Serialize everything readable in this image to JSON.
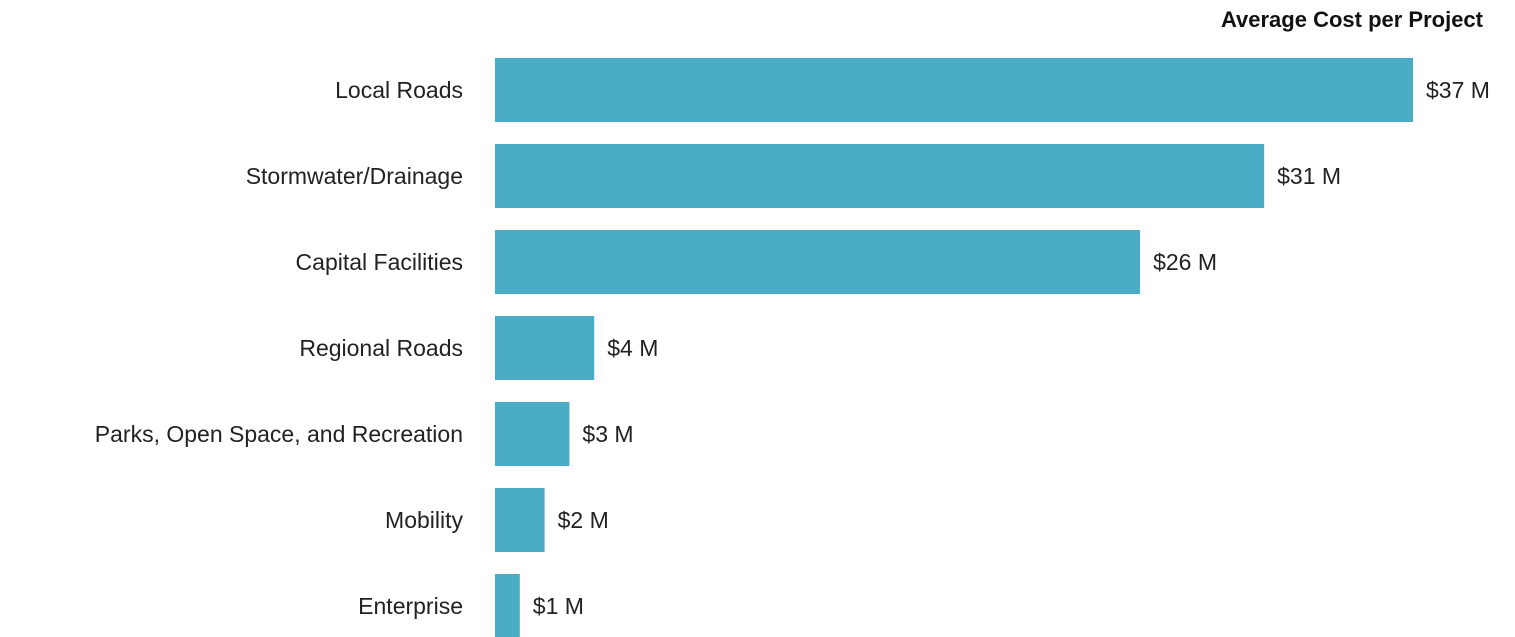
{
  "chart_data": {
    "type": "bar",
    "orientation": "horizontal",
    "title": "Average Cost per Project",
    "xlabel": "",
    "ylabel": "",
    "grid": false,
    "legend": "none",
    "bar_color": "#4BACC6",
    "categories": [
      "Local Roads",
      "Stormwater/Drainage",
      "Capital Facilities",
      "Regional Roads",
      "Parks, Open Space, and Recreation",
      "Mobility",
      "Enterprise"
    ],
    "values": [
      37,
      31,
      26,
      4,
      3,
      2,
      1
    ],
    "value_labels": [
      "$37 M",
      "$31 M",
      "$26 M",
      "$4 M",
      "$3 M",
      "$2 M",
      "$1 M"
    ],
    "xlim": [
      0,
      37
    ]
  }
}
